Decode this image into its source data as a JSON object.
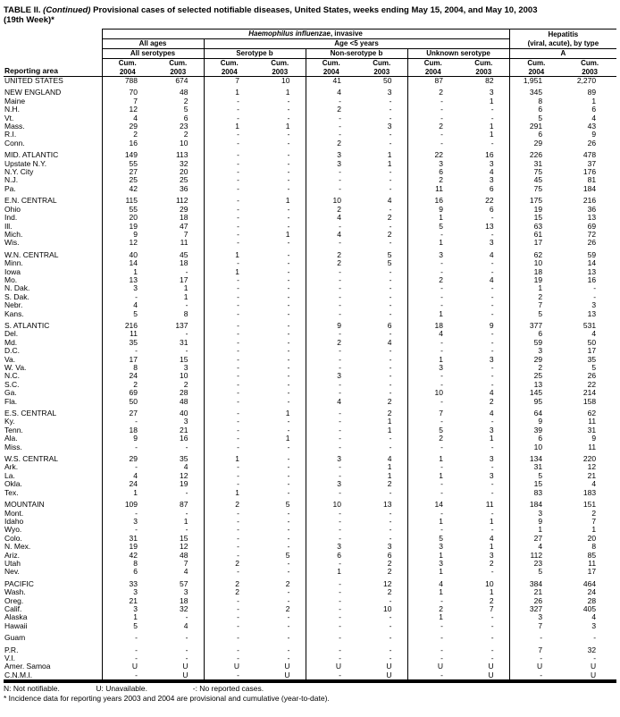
{
  "title": {
    "prefix": "TABLE II.",
    "continued": "(Continued)",
    "rest": "Provisional cases of selected notifiable diseases, United States, weeks ending May 15, 2004, and May 10, 2003",
    "week": "(19th Week)*"
  },
  "table": {
    "headers": {
      "reporting_area": "Reporting area",
      "hflu_italic": "Haemophilus influenzae",
      "hflu_rest": ", invasive",
      "hep_line1": "Hepatitis",
      "hep_line2": "(viral, acute), by type",
      "all_ages": "All ages",
      "age_under5": "Age <5 years",
      "all_serotypes": "All serotypes",
      "serotype_b": "Serotype b",
      "non_serotype_b": "Non-serotype b",
      "unknown_serotype": "Unknown serotype",
      "hep_a": "A",
      "cum": "Cum.",
      "y2004": "2004",
      "y2003": "2003"
    },
    "rows": [
      {
        "area": "UNITED STATES",
        "level": "us",
        "gap": false,
        "values": [
          "788",
          "674",
          "7",
          "10",
          "41",
          "50",
          "87",
          "82",
          "1,951",
          "2,270"
        ]
      },
      {
        "area": "NEW ENGLAND",
        "level": "region",
        "gap": true,
        "values": [
          "70",
          "48",
          "1",
          "1",
          "4",
          "3",
          "2",
          "3",
          "345",
          "89"
        ]
      },
      {
        "area": "Maine",
        "level": "state",
        "gap": false,
        "values": [
          "7",
          "2",
          "-",
          "-",
          "-",
          "-",
          "-",
          "1",
          "8",
          "1"
        ]
      },
      {
        "area": "N.H.",
        "level": "state",
        "gap": false,
        "values": [
          "12",
          "5",
          "-",
          "-",
          "2",
          "-",
          "-",
          "-",
          "6",
          "6"
        ]
      },
      {
        "area": "Vt.",
        "level": "state",
        "gap": false,
        "values": [
          "4",
          "6",
          "-",
          "-",
          "-",
          "-",
          "-",
          "-",
          "5",
          "4"
        ]
      },
      {
        "area": "Mass.",
        "level": "state",
        "gap": false,
        "values": [
          "29",
          "23",
          "1",
          "1",
          "-",
          "3",
          "2",
          "1",
          "291",
          "43"
        ]
      },
      {
        "area": "R.I.",
        "level": "state",
        "gap": false,
        "values": [
          "2",
          "2",
          "-",
          "-",
          "-",
          "-",
          "-",
          "1",
          "6",
          "9"
        ]
      },
      {
        "area": "Conn.",
        "level": "state",
        "gap": false,
        "values": [
          "16",
          "10",
          "-",
          "-",
          "2",
          "-",
          "-",
          "-",
          "29",
          "26"
        ]
      },
      {
        "area": "MID. ATLANTIC",
        "level": "region",
        "gap": true,
        "values": [
          "149",
          "113",
          "-",
          "-",
          "3",
          "1",
          "22",
          "16",
          "226",
          "478"
        ]
      },
      {
        "area": "Upstate N.Y.",
        "level": "state",
        "gap": false,
        "values": [
          "55",
          "32",
          "-",
          "-",
          "3",
          "1",
          "3",
          "3",
          "31",
          "37"
        ]
      },
      {
        "area": "N.Y. City",
        "level": "state",
        "gap": false,
        "values": [
          "27",
          "20",
          "-",
          "-",
          "-",
          "-",
          "6",
          "4",
          "75",
          "176"
        ]
      },
      {
        "area": "N.J.",
        "level": "state",
        "gap": false,
        "values": [
          "25",
          "25",
          "-",
          "-",
          "-",
          "-",
          "2",
          "3",
          "45",
          "81"
        ]
      },
      {
        "area": "Pa.",
        "level": "state",
        "gap": false,
        "values": [
          "42",
          "36",
          "-",
          "-",
          "-",
          "-",
          "11",
          "6",
          "75",
          "184"
        ]
      },
      {
        "area": "E.N. CENTRAL",
        "level": "region",
        "gap": true,
        "values": [
          "115",
          "112",
          "-",
          "1",
          "10",
          "4",
          "16",
          "22",
          "175",
          "216"
        ]
      },
      {
        "area": "Ohio",
        "level": "state",
        "gap": false,
        "values": [
          "55",
          "29",
          "-",
          "-",
          "2",
          "-",
          "9",
          "6",
          "19",
          "36"
        ]
      },
      {
        "area": "Ind.",
        "level": "state",
        "gap": false,
        "values": [
          "20",
          "18",
          "-",
          "-",
          "4",
          "2",
          "1",
          "-",
          "15",
          "13"
        ]
      },
      {
        "area": "Ill.",
        "level": "state",
        "gap": false,
        "values": [
          "19",
          "47",
          "-",
          "-",
          "-",
          "-",
          "5",
          "13",
          "63",
          "69"
        ]
      },
      {
        "area": "Mich.",
        "level": "state",
        "gap": false,
        "values": [
          "9",
          "7",
          "-",
          "1",
          "4",
          "2",
          "-",
          "-",
          "61",
          "72"
        ]
      },
      {
        "area": "Wis.",
        "level": "state",
        "gap": false,
        "values": [
          "12",
          "11",
          "-",
          "-",
          "-",
          "-",
          "1",
          "3",
          "17",
          "26"
        ]
      },
      {
        "area": "W.N. CENTRAL",
        "level": "region",
        "gap": true,
        "values": [
          "40",
          "45",
          "1",
          "-",
          "2",
          "5",
          "3",
          "4",
          "62",
          "59"
        ]
      },
      {
        "area": "Minn.",
        "level": "state",
        "gap": false,
        "values": [
          "14",
          "18",
          "-",
          "-",
          "2",
          "5",
          "-",
          "-",
          "10",
          "14"
        ]
      },
      {
        "area": "Iowa",
        "level": "state",
        "gap": false,
        "values": [
          "1",
          "-",
          "1",
          "-",
          "-",
          "-",
          "-",
          "-",
          "18",
          "13"
        ]
      },
      {
        "area": "Mo.",
        "level": "state",
        "gap": false,
        "values": [
          "13",
          "17",
          "-",
          "-",
          "-",
          "-",
          "2",
          "4",
          "19",
          "16"
        ]
      },
      {
        "area": "N. Dak.",
        "level": "state",
        "gap": false,
        "values": [
          "3",
          "1",
          "-",
          "-",
          "-",
          "-",
          "-",
          "-",
          "1",
          "-"
        ]
      },
      {
        "area": "S. Dak.",
        "level": "state",
        "gap": false,
        "values": [
          "-",
          "1",
          "-",
          "-",
          "-",
          "-",
          "-",
          "-",
          "2",
          "-"
        ]
      },
      {
        "area": "Nebr.",
        "level": "state",
        "gap": false,
        "values": [
          "4",
          "-",
          "-",
          "-",
          "-",
          "-",
          "-",
          "-",
          "7",
          "3"
        ]
      },
      {
        "area": "Kans.",
        "level": "state",
        "gap": false,
        "values": [
          "5",
          "8",
          "-",
          "-",
          "-",
          "-",
          "1",
          "-",
          "5",
          "13"
        ]
      },
      {
        "area": "S. ATLANTIC",
        "level": "region",
        "gap": true,
        "values": [
          "216",
          "137",
          "-",
          "-",
          "9",
          "6",
          "18",
          "9",
          "377",
          "531"
        ]
      },
      {
        "area": "Del.",
        "level": "state",
        "gap": false,
        "values": [
          "11",
          "-",
          "-",
          "-",
          "-",
          "-",
          "4",
          "-",
          "6",
          "4"
        ]
      },
      {
        "area": "Md.",
        "level": "state",
        "gap": false,
        "values": [
          "35",
          "31",
          "-",
          "-",
          "2",
          "4",
          "-",
          "-",
          "59",
          "50"
        ]
      },
      {
        "area": "D.C.",
        "level": "state",
        "gap": false,
        "values": [
          "-",
          "-",
          "-",
          "-",
          "-",
          "-",
          "-",
          "-",
          "3",
          "17"
        ]
      },
      {
        "area": "Va.",
        "level": "state",
        "gap": false,
        "values": [
          "17",
          "15",
          "-",
          "-",
          "-",
          "-",
          "1",
          "3",
          "29",
          "35"
        ]
      },
      {
        "area": "W. Va.",
        "level": "state",
        "gap": false,
        "values": [
          "8",
          "3",
          "-",
          "-",
          "-",
          "-",
          "3",
          "-",
          "2",
          "5"
        ]
      },
      {
        "area": "N.C.",
        "level": "state",
        "gap": false,
        "values": [
          "24",
          "10",
          "-",
          "-",
          "3",
          "-",
          "-",
          "-",
          "25",
          "26"
        ]
      },
      {
        "area": "S.C.",
        "level": "state",
        "gap": false,
        "values": [
          "2",
          "2",
          "-",
          "-",
          "-",
          "-",
          "-",
          "-",
          "13",
          "22"
        ]
      },
      {
        "area": "Ga.",
        "level": "state",
        "gap": false,
        "values": [
          "69",
          "28",
          "-",
          "-",
          "-",
          "-",
          "10",
          "4",
          "145",
          "214"
        ]
      },
      {
        "area": "Fla.",
        "level": "state",
        "gap": false,
        "values": [
          "50",
          "48",
          "-",
          "-",
          "4",
          "2",
          "-",
          "2",
          "95",
          "158"
        ]
      },
      {
        "area": "E.S. CENTRAL",
        "level": "region",
        "gap": true,
        "values": [
          "27",
          "40",
          "-",
          "1",
          "-",
          "2",
          "7",
          "4",
          "64",
          "62"
        ]
      },
      {
        "area": "Ky.",
        "level": "state",
        "gap": false,
        "values": [
          "-",
          "3",
          "-",
          "-",
          "-",
          "1",
          "-",
          "-",
          "9",
          "11"
        ]
      },
      {
        "area": "Tenn.",
        "level": "state",
        "gap": false,
        "values": [
          "18",
          "21",
          "-",
          "-",
          "-",
          "1",
          "5",
          "3",
          "39",
          "31"
        ]
      },
      {
        "area": "Ala.",
        "level": "state",
        "gap": false,
        "values": [
          "9",
          "16",
          "-",
          "1",
          "-",
          "-",
          "2",
          "1",
          "6",
          "9"
        ]
      },
      {
        "area": "Miss.",
        "level": "state",
        "gap": false,
        "values": [
          "-",
          "-",
          "-",
          "-",
          "-",
          "-",
          "-",
          "-",
          "10",
          "11"
        ]
      },
      {
        "area": "W.S. CENTRAL",
        "level": "region",
        "gap": true,
        "values": [
          "29",
          "35",
          "1",
          "-",
          "3",
          "4",
          "1",
          "3",
          "134",
          "220"
        ]
      },
      {
        "area": "Ark.",
        "level": "state",
        "gap": false,
        "values": [
          "-",
          "4",
          "-",
          "-",
          "-",
          "1",
          "-",
          "-",
          "31",
          "12"
        ]
      },
      {
        "area": "La.",
        "level": "state",
        "gap": false,
        "values": [
          "4",
          "12",
          "-",
          "-",
          "-",
          "1",
          "1",
          "3",
          "5",
          "21"
        ]
      },
      {
        "area": "Okla.",
        "level": "state",
        "gap": false,
        "values": [
          "24",
          "19",
          "-",
          "-",
          "3",
          "2",
          "-",
          "-",
          "15",
          "4"
        ]
      },
      {
        "area": "Tex.",
        "level": "state",
        "gap": false,
        "values": [
          "1",
          "-",
          "1",
          "-",
          "-",
          "-",
          "-",
          "-",
          "83",
          "183"
        ]
      },
      {
        "area": "MOUNTAIN",
        "level": "region",
        "gap": true,
        "values": [
          "109",
          "87",
          "2",
          "5",
          "10",
          "13",
          "14",
          "11",
          "184",
          "151"
        ]
      },
      {
        "area": "Mont.",
        "level": "state",
        "gap": false,
        "values": [
          "-",
          "-",
          "-",
          "-",
          "-",
          "-",
          "-",
          "-",
          "3",
          "2"
        ]
      },
      {
        "area": "Idaho",
        "level": "state",
        "gap": false,
        "values": [
          "3",
          "1",
          "-",
          "-",
          "-",
          "-",
          "1",
          "1",
          "9",
          "7"
        ]
      },
      {
        "area": "Wyo.",
        "level": "state",
        "gap": false,
        "values": [
          "-",
          "-",
          "-",
          "-",
          "-",
          "-",
          "-",
          "-",
          "1",
          "1"
        ]
      },
      {
        "area": "Colo.",
        "level": "state",
        "gap": false,
        "values": [
          "31",
          "15",
          "-",
          "-",
          "-",
          "-",
          "5",
          "4",
          "27",
          "20"
        ]
      },
      {
        "area": "N. Mex.",
        "level": "state",
        "gap": false,
        "values": [
          "19",
          "12",
          "-",
          "-",
          "3",
          "3",
          "3",
          "1",
          "4",
          "8"
        ]
      },
      {
        "area": "Ariz.",
        "level": "state",
        "gap": false,
        "values": [
          "42",
          "48",
          "-",
          "5",
          "6",
          "6",
          "1",
          "3",
          "112",
          "85"
        ]
      },
      {
        "area": "Utah",
        "level": "state",
        "gap": false,
        "values": [
          "8",
          "7",
          "2",
          "-",
          "-",
          "2",
          "3",
          "2",
          "23",
          "11"
        ]
      },
      {
        "area": "Nev.",
        "level": "state",
        "gap": false,
        "values": [
          "6",
          "4",
          "-",
          "-",
          "1",
          "2",
          "1",
          "-",
          "5",
          "17"
        ]
      },
      {
        "area": "PACIFIC",
        "level": "region",
        "gap": true,
        "values": [
          "33",
          "57",
          "2",
          "2",
          "-",
          "12",
          "4",
          "10",
          "384",
          "464"
        ]
      },
      {
        "area": "Wash.",
        "level": "state",
        "gap": false,
        "values": [
          "3",
          "3",
          "2",
          "-",
          "-",
          "2",
          "1",
          "1",
          "21",
          "24"
        ]
      },
      {
        "area": "Oreg.",
        "level": "state",
        "gap": false,
        "values": [
          "21",
          "18",
          "-",
          "-",
          "-",
          "-",
          "-",
          "2",
          "26",
          "28"
        ]
      },
      {
        "area": "Calif.",
        "level": "state",
        "gap": false,
        "values": [
          "3",
          "32",
          "-",
          "2",
          "-",
          "10",
          "2",
          "7",
          "327",
          "405"
        ]
      },
      {
        "area": "Alaska",
        "level": "state",
        "gap": false,
        "values": [
          "1",
          "-",
          "-",
          "-",
          "-",
          "-",
          "1",
          "-",
          "3",
          "4"
        ]
      },
      {
        "area": "Hawaii",
        "level": "state",
        "gap": false,
        "values": [
          "5",
          "4",
          "-",
          "-",
          "-",
          "-",
          "-",
          "-",
          "7",
          "3"
        ]
      },
      {
        "area": "Guam",
        "level": "territory",
        "gap": true,
        "values": [
          "-",
          "-",
          "-",
          "-",
          "-",
          "-",
          "-",
          "-",
          "-",
          "-"
        ]
      },
      {
        "area": "P.R.",
        "level": "territory",
        "gap": true,
        "values": [
          "-",
          "-",
          "-",
          "-",
          "-",
          "-",
          "-",
          "-",
          "7",
          "32"
        ]
      },
      {
        "area": "V.I.",
        "level": "territory",
        "gap": false,
        "values": [
          "-",
          "-",
          "-",
          "-",
          "-",
          "-",
          "-",
          "-",
          "-",
          "-"
        ]
      },
      {
        "area": "Amer. Samoa",
        "level": "territory",
        "gap": false,
        "values": [
          "U",
          "U",
          "U",
          "U",
          "U",
          "U",
          "U",
          "U",
          "U",
          "U"
        ]
      },
      {
        "area": "C.N.M.I.",
        "level": "territory",
        "gap": false,
        "values": [
          "-",
          "U",
          "-",
          "U",
          "-",
          "U",
          "-",
          "U",
          "-",
          "U"
        ]
      }
    ]
  },
  "footnotes": {
    "legend_n": "N: Not notifiable.",
    "legend_u": "U: Unavailable.",
    "legend_dash": "-: No reported cases.",
    "incidence": "* Incidence data for reporting years 2003 and 2004 are provisional and cumulative (year-to-date)."
  }
}
